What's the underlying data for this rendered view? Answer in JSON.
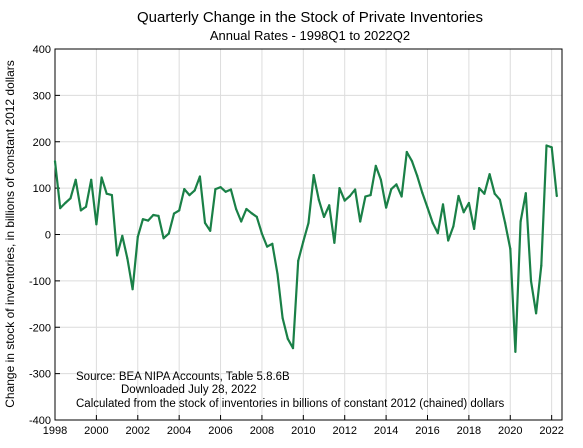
{
  "chart_data": {
    "type": "line",
    "title": "Quarterly Change in the Stock of Private Inventories",
    "subtitle": "Annual Rates - 1998Q1 to 2022Q2",
    "xlabel": "",
    "ylabel": "Change in stock of inventories, in billions of constant 2012 dollars",
    "ylim": [
      -400,
      400
    ],
    "yticks": [
      "-400",
      "-300",
      "-200",
      "-100",
      "0",
      "100",
      "200",
      "300",
      "400"
    ],
    "xlim": [
      1998,
      2022.5
    ],
    "xticks": [
      "1998",
      "2000",
      "2002",
      "2004",
      "2006",
      "2008",
      "2010",
      "2012",
      "2014",
      "2016",
      "2018",
      "2020",
      "2022"
    ],
    "grid": true,
    "line_color": "#1a8047",
    "series": [
      {
        "x": [
          "1998Q1",
          "1998Q2",
          "1998Q3",
          "1998Q4",
          "1999Q1",
          "1999Q2",
          "1999Q3",
          "1999Q4",
          "2000Q1",
          "2000Q2",
          "2000Q3",
          "2000Q4",
          "2001Q1",
          "2001Q2",
          "2001Q3",
          "2001Q4",
          "2002Q1",
          "2002Q2",
          "2002Q3",
          "2002Q4",
          "2003Q1",
          "2003Q2",
          "2003Q3",
          "2003Q4",
          "2004Q1",
          "2004Q2",
          "2004Q3",
          "2004Q4",
          "2005Q1",
          "2005Q2",
          "2005Q3",
          "2005Q4",
          "2006Q1",
          "2006Q2",
          "2006Q3",
          "2006Q4",
          "2007Q1",
          "2007Q2",
          "2007Q3",
          "2007Q4",
          "2008Q1",
          "2008Q2",
          "2008Q3",
          "2008Q4",
          "2009Q1",
          "2009Q2",
          "2009Q3",
          "2009Q4",
          "2010Q1",
          "2010Q2",
          "2010Q3",
          "2010Q4",
          "2011Q1",
          "2011Q2",
          "2011Q3",
          "2011Q4",
          "2012Q1",
          "2012Q2",
          "2012Q3",
          "2012Q4",
          "2013Q1",
          "2013Q2",
          "2013Q3",
          "2013Q4",
          "2014Q1",
          "2014Q2",
          "2014Q3",
          "2014Q4",
          "2015Q1",
          "2015Q2",
          "2015Q3",
          "2015Q4",
          "2016Q1",
          "2016Q2",
          "2016Q3",
          "2016Q4",
          "2017Q1",
          "2017Q2",
          "2017Q3",
          "2017Q4",
          "2018Q1",
          "2018Q2",
          "2018Q3",
          "2018Q4",
          "2019Q1",
          "2019Q2",
          "2019Q3",
          "2019Q4",
          "2020Q1",
          "2020Q2",
          "2020Q3",
          "2020Q4",
          "2021Q1",
          "2021Q2",
          "2021Q3",
          "2021Q4",
          "2022Q1",
          "2022Q2"
        ],
        "values": [
          158,
          57,
          68,
          78,
          118,
          52,
          60,
          118,
          22,
          123,
          88,
          85,
          -45,
          -3,
          -52,
          -118,
          -5,
          33,
          30,
          42,
          40,
          -8,
          2,
          45,
          52,
          98,
          85,
          95,
          125,
          25,
          8,
          98,
          102,
          92,
          97,
          55,
          28,
          55,
          46,
          38,
          2,
          -26,
          -20,
          -85,
          -180,
          -225,
          -245,
          -57,
          -15,
          25,
          128,
          75,
          38,
          63,
          -18,
          100,
          73,
          83,
          97,
          28,
          82,
          85,
          148,
          118,
          58,
          98,
          108,
          82,
          178,
          158,
          127,
          90,
          58,
          25,
          3,
          65,
          -13,
          18,
          83,
          48,
          68,
          12,
          100,
          88,
          130,
          88,
          75,
          25,
          -31,
          -253,
          28,
          89,
          -100,
          -170,
          -67,
          192,
          188,
          83
        ]
      }
    ],
    "annotation": {
      "source": "Source:  BEA NIPA Accounts, Table 5.8.6B",
      "downloaded": "Downloaded July 28, 2022",
      "calc": "Calculated from the stock of inventories in billions of constant 2012 (chained) dollars"
    }
  }
}
